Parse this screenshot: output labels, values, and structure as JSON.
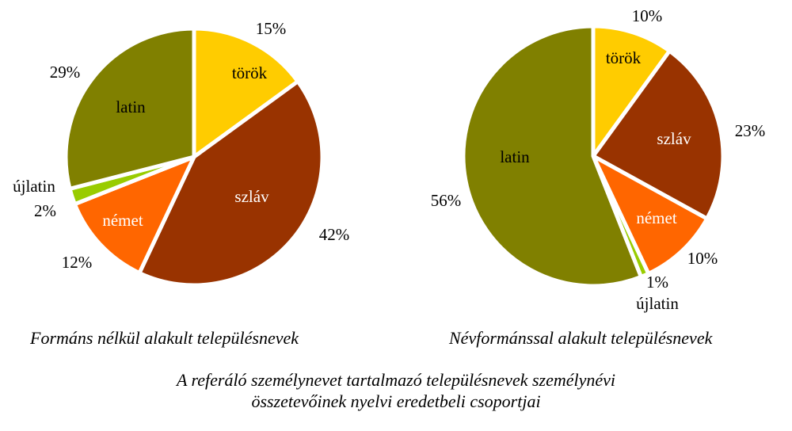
{
  "colors": {
    "török": "#ffcc00",
    "szláv": "#993300",
    "német": "#ff6600",
    "újlatin": "#99cc00",
    "latin": "#808000"
  },
  "chart_data": [
    {
      "type": "pie",
      "title": "Formáns nélkül alakult településnevek",
      "start_angle_deg": 0,
      "direction": "clockwise",
      "slices": [
        {
          "label": "török",
          "value": 15,
          "value_label": "15%"
        },
        {
          "label": "szláv",
          "value": 42,
          "value_label": "42%"
        },
        {
          "label": "német",
          "value": 12,
          "value_label": "12%"
        },
        {
          "label": "újlatin",
          "value": 2,
          "value_label": "2%"
        },
        {
          "label": "latin",
          "value": 29,
          "value_label": "29%"
        }
      ]
    },
    {
      "type": "pie",
      "title": "Névformánssal alakult településnevek",
      "start_angle_deg": 0,
      "direction": "clockwise",
      "slices": [
        {
          "label": "török",
          "value": 10,
          "value_label": "10%"
        },
        {
          "label": "szláv",
          "value": 23,
          "value_label": "23%"
        },
        {
          "label": "német",
          "value": 10,
          "value_label": "10%"
        },
        {
          "label": "újlatin",
          "value": 1,
          "value_label": "1%"
        },
        {
          "label": "latin",
          "value": 56,
          "value_label": "56%"
        }
      ]
    }
  ],
  "caption": {
    "line1": "A referáló személynevet tartalmazó településnevek személynévi",
    "line2": "összetevőinek nyelvi eredetbeli csoportjai"
  }
}
